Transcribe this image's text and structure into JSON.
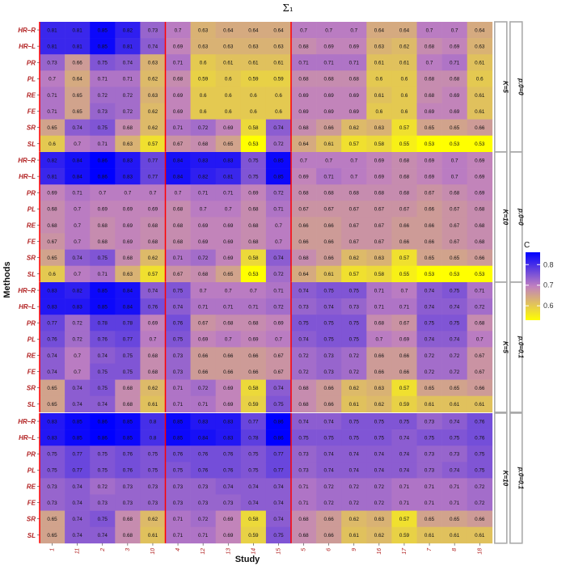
{
  "chart_data": {
    "type": "heatmap",
    "title": "Σ₁",
    "xlabel": "Study",
    "ylabel": "Methods",
    "columns": [
      "1",
      "11",
      "2",
      "3",
      "10",
      "4",
      "12",
      "13",
      "14",
      "15",
      "5",
      "6",
      "9",
      "16",
      "17",
      "7",
      "8",
      "18"
    ],
    "rows": [
      "HR–R",
      "HR–L",
      "PR",
      "PL",
      "RE",
      "FE",
      "SR",
      "SL"
    ],
    "legend": {
      "title": "C",
      "ticks": [
        "0.8",
        "0.7",
        "0.6"
      ],
      "tick_values": [
        0.8,
        0.7,
        0.6
      ],
      "range": [
        0.53,
        0.86
      ],
      "colors": {
        "low": "#ffff00",
        "mid": "#c080c0",
        "high": "#0000ff"
      }
    },
    "panels": [
      {
        "strip_k": "K=5",
        "strip_p": "p.0=0",
        "values": [
          [
            0.81,
            0.81,
            0.85,
            0.82,
            0.73,
            0.7,
            0.63,
            0.64,
            0.64,
            0.64,
            0.7,
            0.7,
            0.7,
            0.64,
            0.64,
            0.7,
            0.7,
            0.64
          ],
          [
            0.81,
            0.81,
            0.85,
            0.81,
            0.74,
            0.69,
            0.63,
            0.63,
            0.63,
            0.63,
            0.68,
            0.69,
            0.69,
            0.63,
            0.62,
            0.68,
            0.69,
            0.63
          ],
          [
            0.73,
            0.66,
            0.75,
            0.74,
            0.63,
            0.71,
            0.6,
            0.61,
            0.61,
            0.61,
            0.71,
            0.71,
            0.71,
            0.61,
            0.61,
            0.7,
            0.71,
            0.61
          ],
          [
            0.7,
            0.64,
            0.71,
            0.71,
            0.62,
            0.68,
            0.59,
            0.6,
            0.59,
            0.59,
            0.68,
            0.68,
            0.68,
            0.6,
            0.6,
            0.68,
            0.68,
            0.6
          ],
          [
            0.71,
            0.65,
            0.72,
            0.72,
            0.63,
            0.69,
            0.6,
            0.6,
            0.6,
            0.6,
            0.69,
            0.69,
            0.69,
            0.61,
            0.6,
            0.68,
            0.69,
            0.61
          ],
          [
            0.71,
            0.65,
            0.73,
            0.72,
            0.62,
            0.69,
            0.6,
            0.6,
            0.6,
            0.6,
            0.69,
            0.69,
            0.69,
            0.6,
            0.6,
            0.69,
            0.69,
            0.61
          ],
          [
            0.65,
            0.74,
            0.75,
            0.68,
            0.62,
            0.71,
            0.72,
            0.69,
            0.58,
            0.74,
            0.68,
            0.66,
            0.62,
            0.63,
            0.57,
            0.65,
            0.65,
            0.66
          ],
          [
            0.6,
            0.7,
            0.71,
            0.63,
            0.57,
            0.67,
            0.68,
            0.65,
            0.53,
            0.72,
            0.64,
            0.61,
            0.57,
            0.58,
            0.55,
            0.53,
            0.53,
            0.53
          ]
        ]
      },
      {
        "strip_k": "K=10",
        "strip_p": "p.0=0",
        "values": [
          [
            0.82,
            0.84,
            0.86,
            0.83,
            0.77,
            0.84,
            0.83,
            0.83,
            0.75,
            0.85,
            0.7,
            0.7,
            0.7,
            0.69,
            0.68,
            0.69,
            0.7,
            0.69
          ],
          [
            0.81,
            0.84,
            0.86,
            0.83,
            0.77,
            0.84,
            0.82,
            0.81,
            0.75,
            0.85,
            0.69,
            0.71,
            0.7,
            0.69,
            0.68,
            0.69,
            0.7,
            0.69
          ],
          [
            0.69,
            0.71,
            0.7,
            0.7,
            0.7,
            0.7,
            0.71,
            0.71,
            0.69,
            0.72,
            0.68,
            0.68,
            0.68,
            0.68,
            0.68,
            0.67,
            0.68,
            0.69
          ],
          [
            0.68,
            0.7,
            0.69,
            0.69,
            0.69,
            0.68,
            0.7,
            0.7,
            0.68,
            0.71,
            0.67,
            0.67,
            0.67,
            0.67,
            0.67,
            0.66,
            0.67,
            0.68
          ],
          [
            0.68,
            0.7,
            0.68,
            0.69,
            0.68,
            0.68,
            0.69,
            0.69,
            0.68,
            0.7,
            0.66,
            0.66,
            0.67,
            0.67,
            0.66,
            0.66,
            0.67,
            0.68
          ],
          [
            0.67,
            0.7,
            0.68,
            0.69,
            0.68,
            0.68,
            0.69,
            0.69,
            0.68,
            0.7,
            0.66,
            0.66,
            0.67,
            0.67,
            0.66,
            0.66,
            0.67,
            0.68
          ],
          [
            0.65,
            0.74,
            0.75,
            0.68,
            0.62,
            0.71,
            0.72,
            0.69,
            0.58,
            0.74,
            0.68,
            0.66,
            0.62,
            0.63,
            0.57,
            0.65,
            0.65,
            0.66
          ],
          [
            0.6,
            0.7,
            0.71,
            0.63,
            0.57,
            0.67,
            0.68,
            0.65,
            0.53,
            0.72,
            0.64,
            0.61,
            0.57,
            0.58,
            0.55,
            0.53,
            0.53,
            0.53
          ]
        ]
      },
      {
        "strip_k": "K=5",
        "strip_p": "p.0=0.1",
        "values": [
          [
            0.83,
            0.82,
            0.85,
            0.84,
            0.74,
            0.75,
            0.7,
            0.7,
            0.7,
            0.71,
            0.74,
            0.75,
            0.75,
            0.71,
            0.7,
            0.74,
            0.75,
            0.71
          ],
          [
            0.83,
            0.83,
            0.85,
            0.84,
            0.76,
            0.74,
            0.71,
            0.71,
            0.71,
            0.72,
            0.73,
            0.74,
            0.73,
            0.71,
            0.71,
            0.74,
            0.74,
            0.72
          ],
          [
            0.77,
            0.72,
            0.78,
            0.78,
            0.69,
            0.76,
            0.67,
            0.68,
            0.68,
            0.69,
            0.75,
            0.75,
            0.75,
            0.68,
            0.67,
            0.75,
            0.75,
            0.68
          ],
          [
            0.76,
            0.72,
            0.76,
            0.77,
            0.7,
            0.75,
            0.69,
            0.7,
            0.69,
            0.7,
            0.74,
            0.75,
            0.75,
            0.7,
            0.69,
            0.74,
            0.74,
            0.7
          ],
          [
            0.74,
            0.7,
            0.74,
            0.75,
            0.68,
            0.73,
            0.66,
            0.66,
            0.66,
            0.67,
            0.72,
            0.73,
            0.72,
            0.66,
            0.66,
            0.72,
            0.72,
            0.67
          ],
          [
            0.74,
            0.7,
            0.75,
            0.75,
            0.68,
            0.73,
            0.66,
            0.66,
            0.66,
            0.67,
            0.72,
            0.73,
            0.72,
            0.66,
            0.66,
            0.72,
            0.72,
            0.67
          ],
          [
            0.65,
            0.74,
            0.75,
            0.68,
            0.62,
            0.71,
            0.72,
            0.69,
            0.58,
            0.74,
            0.68,
            0.66,
            0.62,
            0.63,
            0.57,
            0.65,
            0.65,
            0.66
          ],
          [
            0.65,
            0.74,
            0.74,
            0.68,
            0.61,
            0.71,
            0.71,
            0.69,
            0.59,
            0.75,
            0.68,
            0.66,
            0.61,
            0.62,
            0.59,
            0.61,
            0.61,
            0.61
          ]
        ]
      },
      {
        "strip_k": "K=10",
        "strip_p": "p.0=0.1",
        "values": [
          [
            0.83,
            0.85,
            0.86,
            0.85,
            0.8,
            0.85,
            0.83,
            0.83,
            0.77,
            0.86,
            0.74,
            0.74,
            0.75,
            0.75,
            0.75,
            0.73,
            0.74,
            0.76
          ],
          [
            0.83,
            0.85,
            0.86,
            0.85,
            0.8,
            0.85,
            0.84,
            0.83,
            0.78,
            0.86,
            0.75,
            0.75,
            0.75,
            0.75,
            0.74,
            0.75,
            0.75,
            0.76
          ],
          [
            0.75,
            0.77,
            0.75,
            0.76,
            0.75,
            0.76,
            0.76,
            0.76,
            0.75,
            0.77,
            0.73,
            0.74,
            0.74,
            0.74,
            0.74,
            0.73,
            0.73,
            0.75
          ],
          [
            0.75,
            0.77,
            0.75,
            0.76,
            0.75,
            0.75,
            0.76,
            0.76,
            0.75,
            0.77,
            0.73,
            0.74,
            0.74,
            0.74,
            0.74,
            0.73,
            0.74,
            0.75
          ],
          [
            0.73,
            0.74,
            0.72,
            0.73,
            0.73,
            0.73,
            0.73,
            0.74,
            0.74,
            0.74,
            0.71,
            0.72,
            0.72,
            0.72,
            0.71,
            0.71,
            0.71,
            0.72
          ],
          [
            0.73,
            0.74,
            0.73,
            0.73,
            0.73,
            0.73,
            0.73,
            0.73,
            0.74,
            0.74,
            0.71,
            0.72,
            0.72,
            0.72,
            0.71,
            0.71,
            0.71,
            0.72
          ],
          [
            0.65,
            0.74,
            0.75,
            0.68,
            0.62,
            0.71,
            0.72,
            0.69,
            0.58,
            0.74,
            0.68,
            0.66,
            0.62,
            0.63,
            0.57,
            0.65,
            0.65,
            0.66
          ],
          [
            0.65,
            0.74,
            0.74,
            0.68,
            0.61,
            0.71,
            0.71,
            0.69,
            0.59,
            0.75,
            0.68,
            0.66,
            0.61,
            0.62,
            0.59,
            0.61,
            0.61,
            0.61
          ]
        ]
      }
    ]
  }
}
